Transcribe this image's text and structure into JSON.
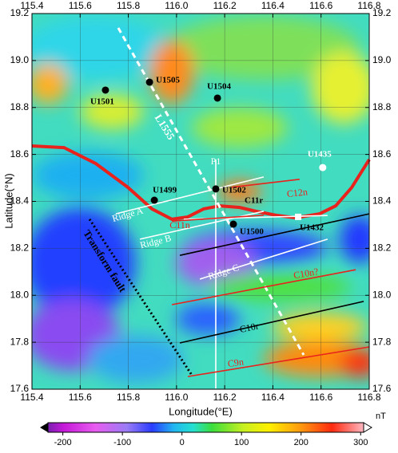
{
  "map": {
    "xlabel": "Longitude(°E)",
    "ylabel": "Latitude(°N)",
    "xlim": [
      115.4,
      116.8
    ],
    "ylim": [
      17.6,
      19.2
    ],
    "xticks": [
      115.4,
      115.6,
      115.8,
      {
        "value": 116,
        "label": "116.0"
      },
      116.2,
      116.4,
      116.6,
      116.8
    ],
    "yticks": [
      17.6,
      17.8,
      {
        "value": 18,
        "label": "18.0"
      },
      18.2,
      18.4,
      18.6,
      18.8,
      {
        "value": 19,
        "label": "19.0"
      },
      19.2
    ],
    "sites": [
      {
        "name": "U1501",
        "lon": 115.705,
        "lat": 18.874,
        "color": "#000000",
        "marker": "circle"
      },
      {
        "name": "U1505",
        "lon": 115.888,
        "lat": 18.908,
        "color": "#000000",
        "marker": "circle"
      },
      {
        "name": "U1504",
        "lon": 116.17,
        "lat": 18.84,
        "color": "#000000",
        "marker": "circle"
      },
      {
        "name": "U1435",
        "lon": 116.607,
        "lat": 18.544,
        "color": "#ffffff",
        "marker": "circle"
      },
      {
        "name": "U1502",
        "lon": 116.163,
        "lat": 18.453,
        "color": "#000000",
        "marker": "circle"
      },
      {
        "name": "U1499",
        "lon": 115.908,
        "lat": 18.405,
        "color": "#000000",
        "marker": "circle"
      },
      {
        "name": "U1500",
        "lon": 116.236,
        "lat": 18.303,
        "color": "#000000",
        "marker": "circle"
      },
      {
        "name": "U1432",
        "lon": 116.505,
        "lat": 18.334,
        "color": "#ffffff",
        "marker": "square"
      }
    ],
    "annotations": [
      "C11r"
    ],
    "lines": [
      {
        "color": "#e8221c",
        "style": "solid",
        "lon": [
          115.4,
          115.533,
          115.665,
          115.798,
          115.898,
          115.981,
          116.047,
          116.113,
          116.18,
          116.263,
          116.329,
          116.412,
          116.495,
          116.594,
          116.661,
          116.727,
          116.8
        ],
        "lat": [
          18.636,
          18.629,
          18.561,
          18.46,
          18.368,
          18.324,
          18.334,
          18.368,
          18.381,
          18.374,
          18.358,
          18.341,
          18.33,
          18.347,
          18.381,
          18.459,
          18.578
        ]
      },
      {
        "name": "L1555",
        "color": "#ffffff",
        "style": "dashed",
        "lon": [
          115.758,
          116.528
        ],
        "lat": [
          19.139,
          17.746
        ]
      },
      {
        "name": "P1",
        "color": "#ffffff",
        "style": "solid",
        "lon": [
          116.163,
          116.163
        ],
        "lat": [
          18.578,
          17.603
        ]
      },
      {
        "name": "Transform fault",
        "color": "#000000",
        "style": "dotted",
        "lon": [
          115.639,
          116.063
        ],
        "lat": [
          18.324,
          17.661
        ]
      },
      {
        "name": "Ridge A",
        "color": "#ffffff",
        "style": "solid",
        "lon": [
          115.748,
          116.362
        ],
        "lat": [
          18.347,
          18.504
        ]
      },
      {
        "name": "Ridge B",
        "color": "#ffffff",
        "style": "solid",
        "lon": [
          115.848,
          116.362
        ],
        "lat": [
          18.239,
          18.358
        ]
      },
      {
        "name": "Ridge C",
        "color": "#ffffff",
        "style": "solid",
        "lon": [
          116.097,
          116.627
        ],
        "lat": [
          18.069,
          18.239
        ]
      },
      {
        "color": "#ffffff",
        "style": "solid",
        "lon": [
          116.03,
          116.627
        ],
        "lat": [
          18.324,
          18.34
        ]
      },
      {
        "name": "C12n",
        "color": "#e8221c",
        "style": "solid",
        "lon": [
          116.229,
          116.511
        ],
        "lat": [
          18.46,
          18.494
        ]
      },
      {
        "name": "C11n",
        "color": "#e8221c",
        "style": "solid",
        "lon": [
          115.981,
          116.362
        ],
        "lat": [
          18.316,
          18.341
        ]
      },
      {
        "color": "#000000",
        "style": "solid",
        "lon": [
          116.014,
          116.8
        ],
        "lat": [
          18.17,
          18.347
        ]
      },
      {
        "name": "C10n?",
        "color": "#e8221c",
        "style": "solid",
        "lon": [
          115.981,
          116.744
        ],
        "lat": [
          17.96,
          18.109
        ]
      },
      {
        "name": "C10r",
        "color": "#000000",
        "style": "solid",
        "lon": [
          116.014,
          116.777
        ],
        "lat": [
          17.797,
          17.974
        ]
      },
      {
        "name": "C9n",
        "color": "#e8221c",
        "style": "solid",
        "lon": [
          116.047,
          116.8
        ],
        "lat": [
          17.654,
          17.78
        ]
      }
    ],
    "colorbar": {
      "unit": "nT",
      "lim": [
        -225,
        305
      ],
      "ticks": [
        -200,
        -100,
        0,
        100,
        200,
        300
      ]
    }
  }
}
